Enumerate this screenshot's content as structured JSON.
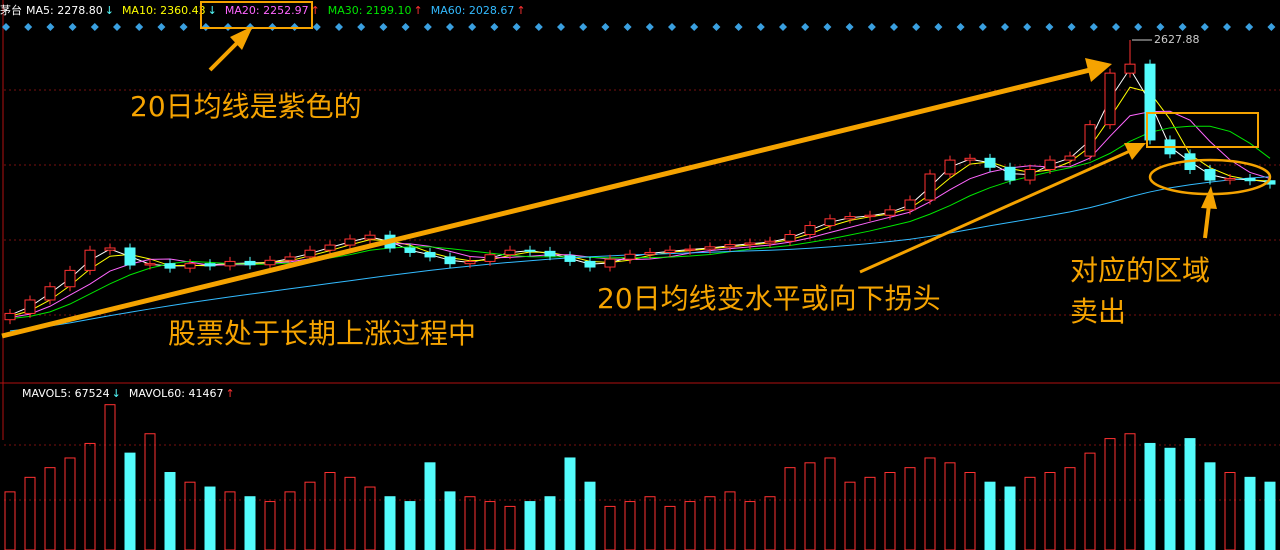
{
  "chart_data": {
    "type": "candlestick",
    "stock_name": "茅台",
    "ylim": [
      1111,
      2717
    ],
    "up_color": "#ff3232",
    "down_color": "#54fcfc",
    "open": [
      1380,
      1408,
      1468,
      1527,
      1600,
      1690,
      1700,
      1624,
      1630,
      1610,
      1630,
      1620,
      1640,
      1625,
      1645,
      1660,
      1690,
      1713,
      1740,
      1757,
      1700,
      1680,
      1660,
      1630,
      1640,
      1670,
      1690,
      1685,
      1665,
      1640,
      1615,
      1650,
      1672,
      1680,
      1690,
      1695,
      1705,
      1715,
      1722,
      1730,
      1760,
      1800,
      1830,
      1840,
      1846,
      1870,
      1914,
      2030,
      2092,
      2100,
      2060,
      2003,
      2050,
      2092,
      2110,
      2250,
      2480,
      2520,
      2182,
      2120,
      2050,
      2003,
      2010,
      2000
    ],
    "high": [
      1428,
      1488,
      1547,
      1620,
      1710,
      1720,
      1720,
      1650,
      1650,
      1650,
      1650,
      1660,
      1660,
      1665,
      1680,
      1710,
      1733,
      1760,
      1777,
      1777,
      1720,
      1700,
      1680,
      1660,
      1690,
      1710,
      1710,
      1705,
      1685,
      1660,
      1670,
      1692,
      1700,
      1710,
      1715,
      1725,
      1735,
      1742,
      1750,
      1780,
      1820,
      1850,
      1860,
      1866,
      1890,
      1934,
      2050,
      2112,
      2120,
      2120,
      2080,
      2070,
      2112,
      2130,
      2270,
      2500,
      2627.88,
      2540,
      2202,
      2140,
      2070,
      2030,
      2030,
      2020
    ],
    "low": [
      1360,
      1388,
      1448,
      1507,
      1580,
      1670,
      1604,
      1604,
      1590,
      1590,
      1600,
      1600,
      1605,
      1605,
      1625,
      1640,
      1670,
      1693,
      1720,
      1680,
      1660,
      1640,
      1610,
      1610,
      1620,
      1650,
      1665,
      1645,
      1620,
      1595,
      1595,
      1630,
      1652,
      1660,
      1670,
      1675,
      1685,
      1695,
      1702,
      1710,
      1740,
      1780,
      1810,
      1820,
      1826,
      1850,
      1894,
      2010,
      2072,
      2040,
      1983,
      1983,
      2030,
      2072,
      2090,
      2230,
      2460,
      2162,
      2100,
      2030,
      1983,
      1983,
      1980,
      1965
    ],
    "close": [
      1408,
      1468,
      1527,
      1600,
      1690,
      1700,
      1624,
      1630,
      1610,
      1630,
      1620,
      1640,
      1625,
      1645,
      1660,
      1690,
      1713,
      1740,
      1757,
      1700,
      1680,
      1660,
      1630,
      1640,
      1670,
      1690,
      1685,
      1665,
      1640,
      1615,
      1650,
      1672,
      1680,
      1690,
      1695,
      1705,
      1715,
      1722,
      1730,
      1760,
      1800,
      1830,
      1840,
      1846,
      1870,
      1914,
      2030,
      2092,
      2100,
      2060,
      2003,
      2050,
      2092,
      2110,
      2250,
      2480,
      2520,
      2182,
      2120,
      2050,
      2003,
      2010,
      2000,
      1985
    ],
    "series": [
      {
        "name": "MA5: 2278.80",
        "arrow": "↓",
        "arrow_color": "#54fcfc",
        "color": "#ffffff",
        "values": [
          1400,
          1438,
          1498,
          1564,
          1645,
          1695,
          1662,
          1627,
          1620,
          1620,
          1625,
          1630,
          1633,
          1635,
          1653,
          1675,
          1702,
          1727,
          1749,
          1729,
          1690,
          1670,
          1645,
          1635,
          1655,
          1680,
          1688,
          1675,
          1653,
          1628,
          1633,
          1661,
          1676,
          1685,
          1693,
          1700,
          1710,
          1719,
          1726,
          1745,
          1780,
          1815,
          1835,
          1843,
          1858,
          1892,
          1972,
          2061,
          2096,
          2080,
          2032,
          2027,
          2071,
          2101,
          2180,
          2365,
          2500,
          2351,
          2151,
          2085,
          2027,
          2007,
          2005,
          1993
        ]
      },
      {
        "name": "MA10: 2360.43",
        "arrow": "↓",
        "arrow_color": "#54fcfc",
        "color": "#ffff00",
        "values": [
          1395,
          1420,
          1468,
          1532,
          1606,
          1663,
          1671,
          1651,
          1621,
          1623,
          1620,
          1630,
          1628,
          1637,
          1643,
          1665,
          1688,
          1714,
          1737,
          1732,
          1712,
          1680,
          1657,
          1643,
          1647,
          1667,
          1682,
          1680,
          1663,
          1640,
          1635,
          1646,
          1667,
          1681,
          1688,
          1697,
          1705,
          1714,
          1722,
          1737,
          1763,
          1797,
          1823,
          1839,
          1852,
          1877,
          1938,
          2012,
          2074,
          2084,
          2054,
          2038,
          2048,
          2084,
          2151,
          2280,
          2417,
          2394,
          2274,
          2117,
          2058,
          2021,
          2004,
          1998
        ]
      },
      {
        "name": "MA20: 2252.97",
        "arrow": "↑",
        "arrow_color": "#ff3232",
        "color": "#ff66ff",
        "values": [
          1390,
          1405,
          1440,
          1490,
          1539,
          1597,
          1628,
          1649,
          1651,
          1637,
          1623,
          1625,
          1625,
          1632,
          1638,
          1652,
          1667,
          1690,
          1712,
          1720,
          1718,
          1707,
          1685,
          1662,
          1656,
          1658,
          1663,
          1670,
          1670,
          1659,
          1651,
          1648,
          1651,
          1661,
          1677,
          1688,
          1697,
          1705,
          1713,
          1726,
          1745,
          1769,
          1792,
          1815,
          1837,
          1860,
          1906,
          1960,
          2009,
          2039,
          2057,
          2067,
          2061,
          2063,
          2101,
          2198,
          2290,
          2308,
          2310,
          2270,
          2175,
          2093,
          2037,
          2010
        ]
      },
      {
        "name": "MA30: 2199.10",
        "arrow": "↑",
        "arrow_color": "#ff3232",
        "color": "#00e600",
        "values": [
          1385,
          1395,
          1415,
          1450,
          1495,
          1540,
          1580,
          1610,
          1630,
          1640,
          1636,
          1630,
          1627,
          1628,
          1633,
          1640,
          1655,
          1670,
          1690,
          1700,
          1705,
          1705,
          1697,
          1687,
          1677,
          1667,
          1661,
          1660,
          1661,
          1658,
          1656,
          1657,
          1657,
          1659,
          1664,
          1671,
          1683,
          1695,
          1702,
          1711,
          1725,
          1740,
          1758,
          1776,
          1797,
          1818,
          1851,
          1889,
          1933,
          1969,
          1998,
          2019,
          2040,
          2058,
          2081,
          2122,
          2176,
          2216,
          2236,
          2243,
          2243,
          2220,
          2167,
          2100
        ]
      },
      {
        "name": "MA60: 2028.67",
        "arrow": "↑",
        "arrow_color": "#ff3232",
        "color": "#33bbff",
        "values": [
          1330,
          1340,
          1352,
          1366,
          1382,
          1398,
          1413,
          1428,
          1442,
          1456,
          1469,
          1482,
          1494,
          1506,
          1518,
          1530,
          1542,
          1554,
          1566,
          1578,
          1589,
          1600,
          1610,
          1619,
          1628,
          1636,
          1643,
          1650,
          1656,
          1661,
          1665,
          1669,
          1672,
          1675,
          1678,
          1681,
          1684,
          1687,
          1690,
          1694,
          1699,
          1705,
          1712,
          1720,
          1729,
          1739,
          1752,
          1767,
          1783,
          1799,
          1814,
          1829,
          1845,
          1861,
          1880,
          1903,
          1928,
          1950,
          1968,
          1982,
          1994,
          2004,
          2012,
          2018
        ]
      }
    ],
    "volume": {
      "ylim": [
        0,
        160000
      ],
      "values": [
        60000,
        75000,
        85000,
        95000,
        110000,
        150000,
        100000,
        120000,
        80000,
        70000,
        65000,
        60000,
        55000,
        50000,
        60000,
        70000,
        80000,
        75000,
        65000,
        55000,
        50000,
        90000,
        60000,
        55000,
        50000,
        45000,
        50000,
        55000,
        95000,
        70000,
        45000,
        50000,
        55000,
        45000,
        50000,
        55000,
        60000,
        50000,
        55000,
        85000,
        90000,
        95000,
        70000,
        75000,
        80000,
        85000,
        95000,
        90000,
        80000,
        70000,
        65000,
        75000,
        80000,
        85000,
        100000,
        115000,
        120000,
        110000,
        105000,
        115000,
        90000,
        80000,
        75000,
        70000
      ],
      "legend": [
        {
          "name": "MAVOL5: 67524",
          "arrow": "↓",
          "color": "#ffffff",
          "arrow_color": "#54fcfc"
        },
        {
          "name": "MAVOL60: 41467",
          "arrow": "↑",
          "color": "#ffffff",
          "arrow_color": "#ff3232"
        }
      ]
    },
    "annotations": [
      "20日均线是紫色的",
      "股票处于长期上涨过程中",
      "20日均线变水平或向下拐头",
      "对应的区域",
      "卖出"
    ]
  }
}
